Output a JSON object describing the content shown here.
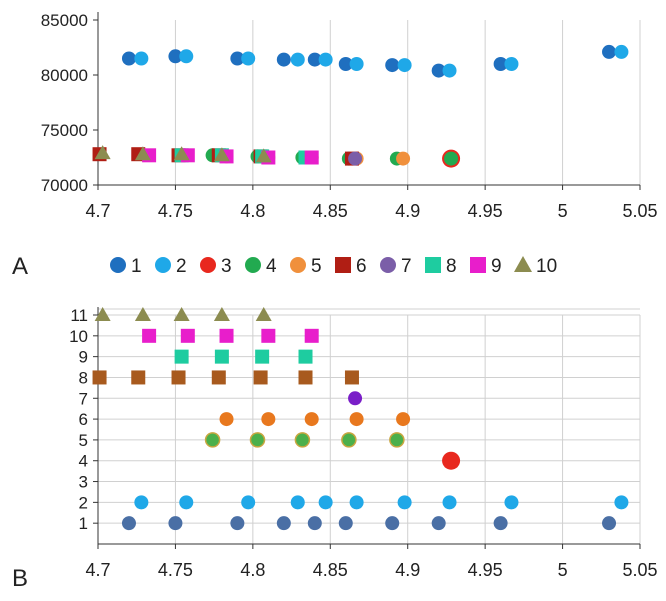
{
  "chart_data": [
    {
      "panel": "A",
      "type": "scatter",
      "xlim": [
        4.7,
        5.05
      ],
      "ylim": [
        70000,
        85000
      ],
      "x_ticks": [
        "4.7",
        "4.75",
        "4.8",
        "4.85",
        "4.9",
        "4.95",
        "5",
        "5.05"
      ],
      "y_ticks": [
        "70000",
        "75000",
        "80000",
        "85000"
      ],
      "grid": "vertical",
      "legend_position": "bottom",
      "series": [
        {
          "name": "1",
          "marker": "circle",
          "color": "#1f6fbf",
          "points": [
            [
              4.72,
              81500
            ],
            [
              4.75,
              81700
            ],
            [
              4.79,
              81500
            ],
            [
              4.82,
              81400
            ],
            [
              4.84,
              81400
            ],
            [
              4.86,
              81000
            ],
            [
              4.89,
              80900
            ],
            [
              4.92,
              80400
            ],
            [
              4.96,
              81000
            ],
            [
              5.03,
              82100
            ]
          ]
        },
        {
          "name": "2",
          "marker": "circle",
          "color": "#1fa8e8",
          "points": [
            [
              4.728,
              81500
            ],
            [
              4.757,
              81700
            ],
            [
              4.797,
              81500
            ],
            [
              4.829,
              81400
            ],
            [
              4.847,
              81400
            ],
            [
              4.867,
              81000
            ],
            [
              4.898,
              80900
            ],
            [
              4.927,
              80400
            ],
            [
              4.967,
              81000
            ],
            [
              5.038,
              82100
            ]
          ]
        },
        {
          "name": "3",
          "marker": "circle",
          "color": "#e8281e",
          "points": [
            [
              4.928,
              72400
            ]
          ]
        },
        {
          "name": "4",
          "marker": "circle",
          "color": "#22aa50",
          "points": [
            [
              4.774,
              72700
            ],
            [
              4.803,
              72600
            ],
            [
              4.832,
              72500
            ],
            [
              4.862,
              72400
            ],
            [
              4.893,
              72400
            ],
            [
              4.928,
              72400
            ]
          ]
        },
        {
          "name": "5",
          "marker": "circle",
          "color": "#f0903c",
          "points": [
            [
              4.783,
              72600
            ],
            [
              4.81,
              72500
            ],
            [
              4.838,
              72500
            ],
            [
              4.867,
              72400
            ],
            [
              4.897,
              72400
            ]
          ]
        },
        {
          "name": "6",
          "marker": "square",
          "color": "#b01e14",
          "points": [
            [
              4.701,
              72800
            ],
            [
              4.726,
              72800
            ],
            [
              4.752,
              72700
            ],
            [
              4.778,
              72700
            ],
            [
              4.805,
              72600
            ],
            [
              4.834,
              72500
            ],
            [
              4.864,
              72400
            ]
          ]
        },
        {
          "name": "7",
          "marker": "circle",
          "color": "#7b5ea8",
          "points": [
            [
              4.866,
              72400
            ]
          ]
        },
        {
          "name": "8",
          "marker": "square",
          "color": "#1ecca0",
          "points": [
            [
              4.754,
              72700
            ],
            [
              4.78,
              72700
            ],
            [
              4.806,
              72600
            ],
            [
              4.834,
              72500
            ]
          ]
        },
        {
          "name": "9",
          "marker": "square",
          "color": "#e81ecb",
          "points": [
            [
              4.733,
              72700
            ],
            [
              4.758,
              72700
            ],
            [
              4.783,
              72600
            ],
            [
              4.81,
              72500
            ],
            [
              4.838,
              72500
            ]
          ]
        },
        {
          "name": "10",
          "marker": "triangle",
          "color": "#8c8c50",
          "points": [
            [
              4.703,
              72900
            ],
            [
              4.729,
              72800
            ],
            [
              4.754,
              72800
            ],
            [
              4.78,
              72700
            ],
            [
              4.807,
              72600
            ]
          ]
        }
      ]
    },
    {
      "panel": "B",
      "type": "scatter",
      "xlim": [
        4.7,
        5.05
      ],
      "ylim": [
        0,
        11
      ],
      "x_ticks": [
        "4.7",
        "4.75",
        "4.8",
        "4.85",
        "4.9",
        "4.95",
        "5",
        "5.05"
      ],
      "y_ticks": [
        "1",
        "2",
        "3",
        "4",
        "5",
        "6",
        "7",
        "8",
        "9",
        "10",
        "11"
      ],
      "grid": "both",
      "series": [
        {
          "marker": "circle",
          "color": "#4a6fa5",
          "points": [
            [
              4.72,
              1
            ],
            [
              4.75,
              1
            ],
            [
              4.79,
              1
            ],
            [
              4.82,
              1
            ],
            [
              4.84,
              1
            ],
            [
              4.86,
              1
            ],
            [
              4.89,
              1
            ],
            [
              4.92,
              1
            ],
            [
              4.96,
              1
            ],
            [
              5.03,
              1
            ]
          ]
        },
        {
          "marker": "circle",
          "color": "#1fa8e8",
          "points": [
            [
              4.728,
              2
            ],
            [
              4.757,
              2
            ],
            [
              4.797,
              2
            ],
            [
              4.829,
              2
            ],
            [
              4.847,
              2
            ],
            [
              4.867,
              2
            ],
            [
              4.898,
              2
            ],
            [
              4.927,
              2
            ],
            [
              4.967,
              2
            ],
            [
              5.038,
              2
            ]
          ]
        },
        {
          "marker": "circle",
          "color": "#e8281e",
          "points": [
            [
              4.928,
              4
            ]
          ]
        },
        {
          "marker": "circle",
          "color": "#4bb04b",
          "points": [
            [
              4.774,
              5
            ],
            [
              4.803,
              5
            ],
            [
              4.832,
              5
            ],
            [
              4.862,
              5
            ],
            [
              4.893,
              5
            ]
          ]
        },
        {
          "marker": "circle",
          "color": "#e8781e",
          "points": [
            [
              4.783,
              6
            ],
            [
              4.81,
              6
            ],
            [
              4.838,
              6
            ],
            [
              4.867,
              6
            ],
            [
              4.897,
              6
            ]
          ]
        },
        {
          "marker": "circle",
          "color": "#7a1ec8",
          "points": [
            [
              4.866,
              7
            ]
          ]
        },
        {
          "marker": "square",
          "color": "#a85a1e",
          "points": [
            [
              4.701,
              8
            ],
            [
              4.726,
              8
            ],
            [
              4.752,
              8
            ],
            [
              4.778,
              8
            ],
            [
              4.805,
              8
            ],
            [
              4.834,
              8
            ],
            [
              4.864,
              8
            ]
          ]
        },
        {
          "marker": "square",
          "color": "#1ecca0",
          "points": [
            [
              4.754,
              9
            ],
            [
              4.78,
              9
            ],
            [
              4.806,
              9
            ],
            [
              4.834,
              9
            ]
          ]
        },
        {
          "marker": "square",
          "color": "#e81ecb",
          "points": [
            [
              4.733,
              10
            ],
            [
              4.758,
              10
            ],
            [
              4.783,
              10
            ],
            [
              4.81,
              10
            ],
            [
              4.838,
              10
            ]
          ]
        },
        {
          "marker": "triangle",
          "color": "#8c8c50",
          "points": [
            [
              4.703,
              11
            ],
            [
              4.729,
              11
            ],
            [
              4.754,
              11
            ],
            [
              4.78,
              11
            ],
            [
              4.807,
              11
            ]
          ]
        }
      ]
    }
  ]
}
